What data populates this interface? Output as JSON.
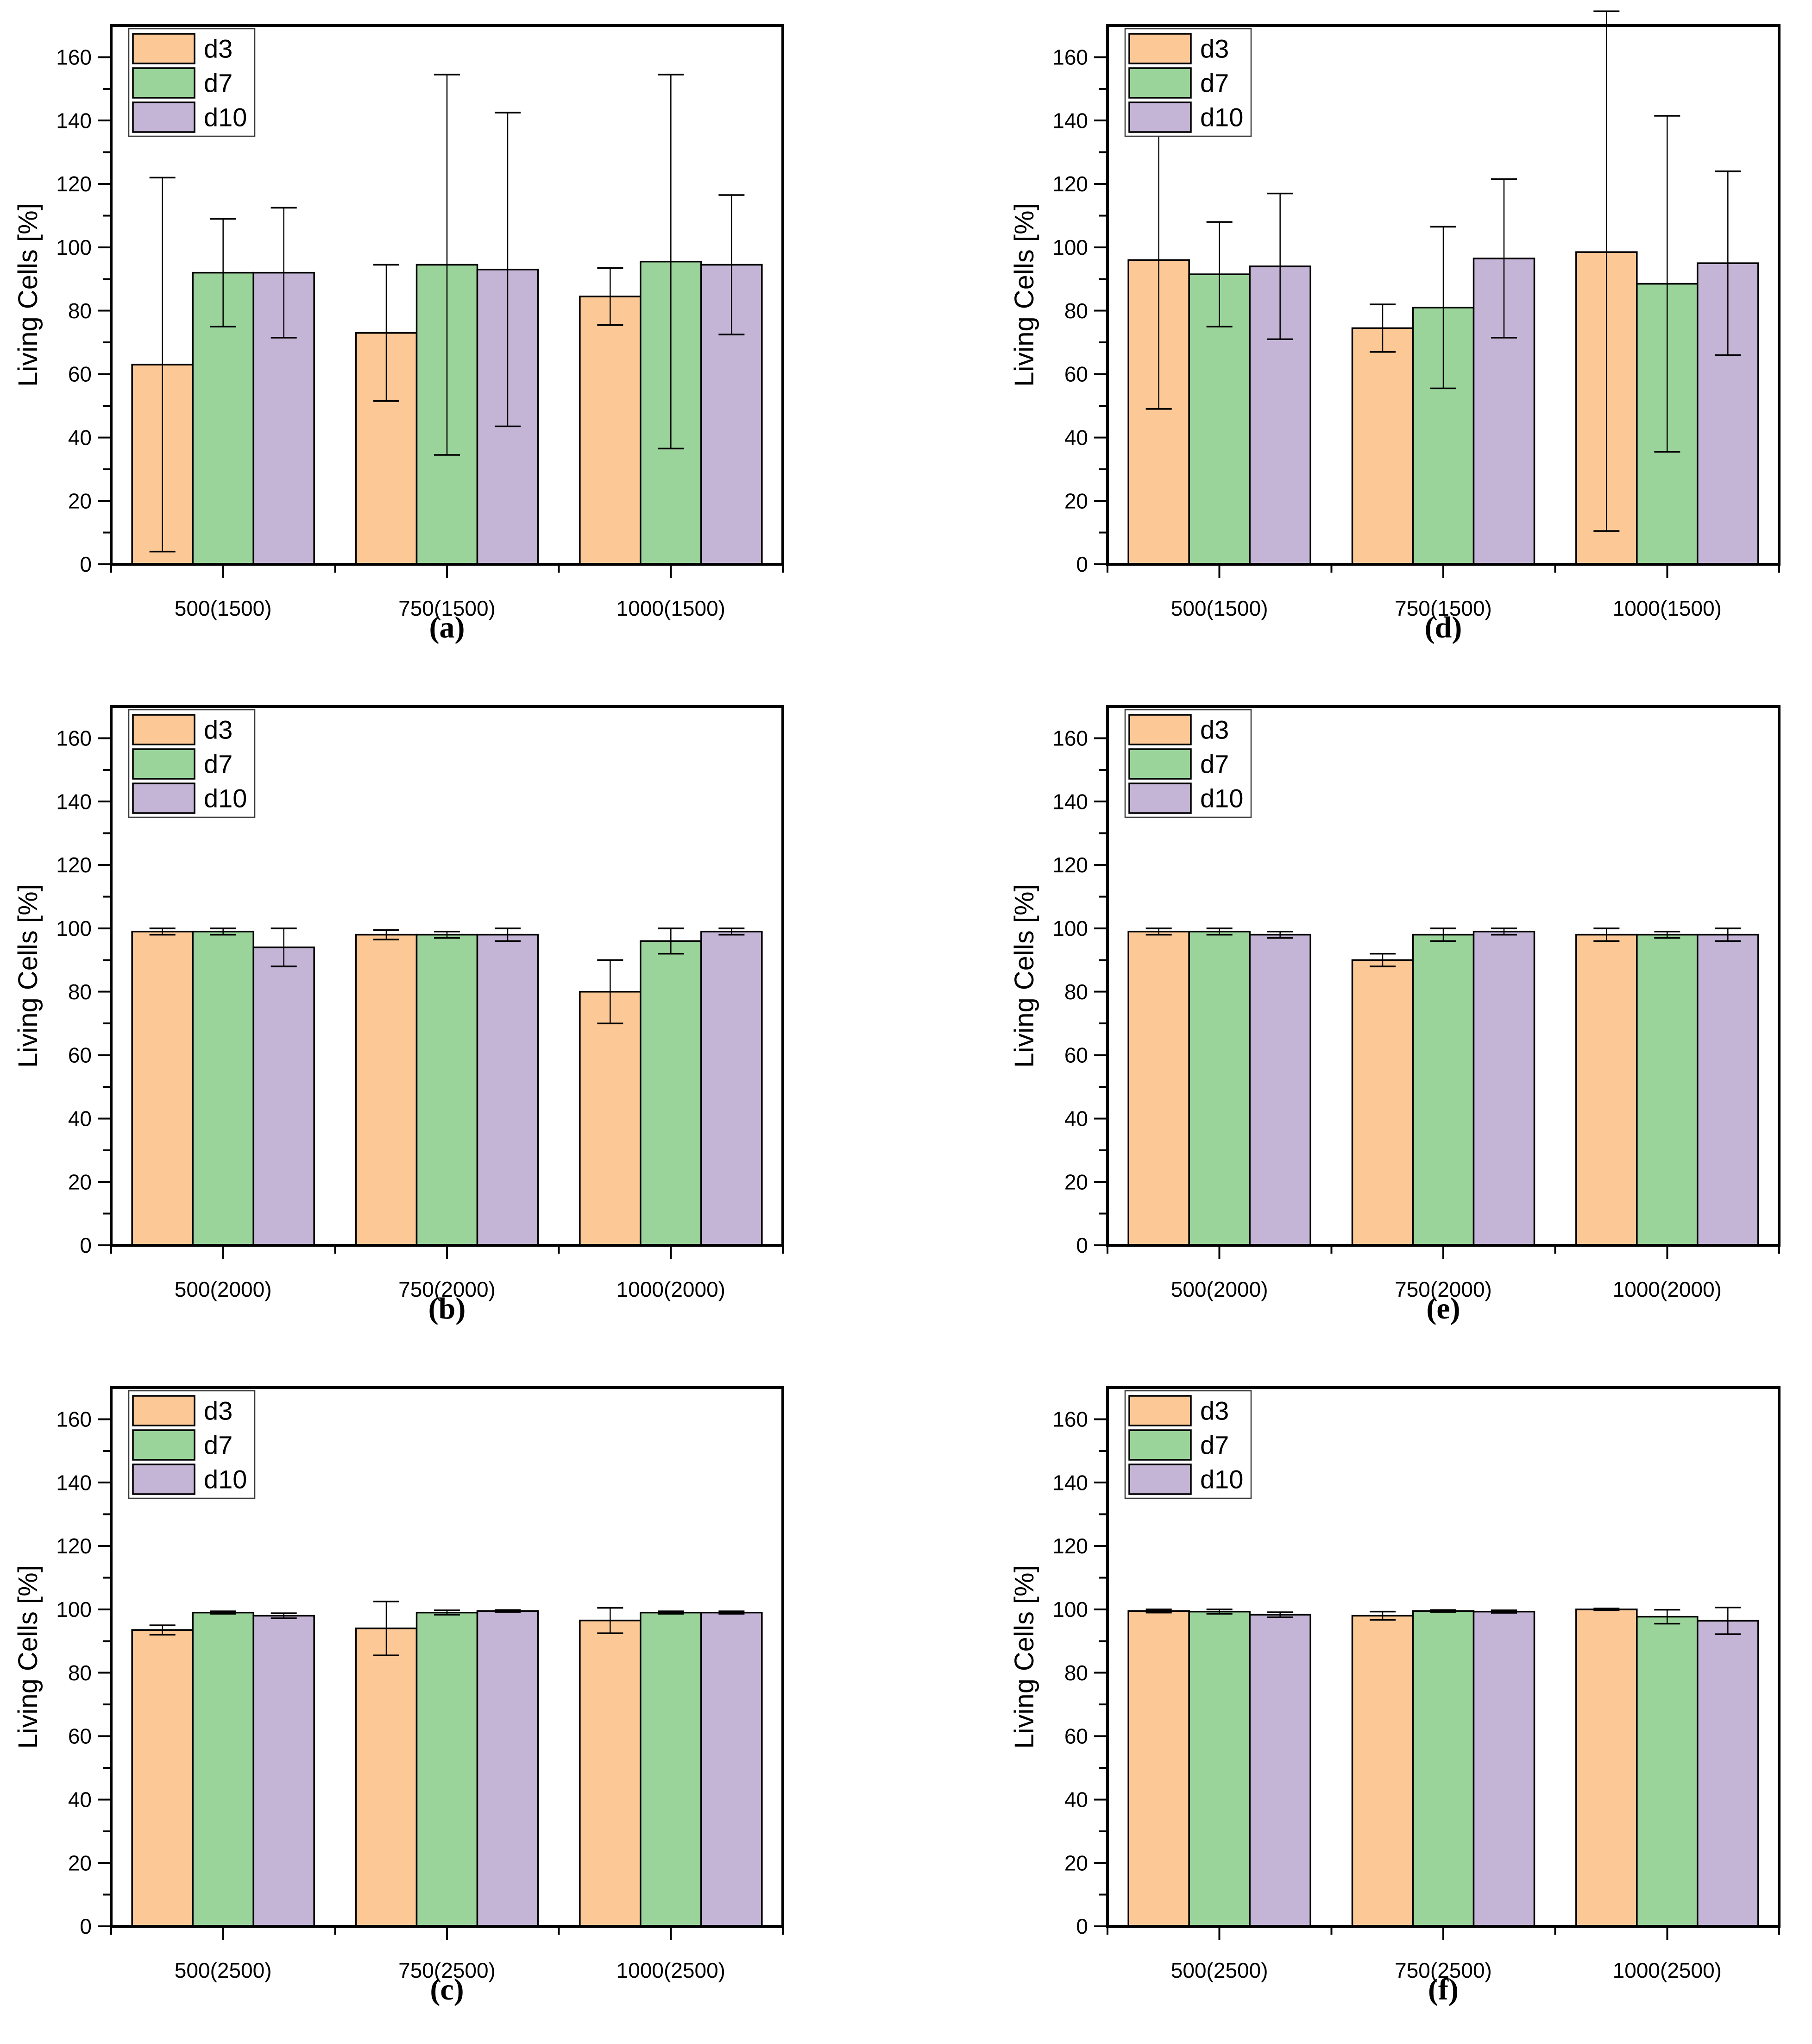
{
  "figure": {
    "background": "#ffffff",
    "axis_color": "#000000",
    "bar_border_color": "#000000",
    "error_bar_color": "#000000",
    "legend_border_color": "#333333",
    "series": [
      {
        "key": "d3",
        "label": "d3",
        "color": "#FCC896"
      },
      {
        "key": "d7",
        "label": "d7",
        "color": "#9AD49A"
      },
      {
        "key": "d10",
        "label": "d10",
        "color": "#C4B4D6"
      }
    ]
  },
  "chart_data": [
    {
      "id": "a",
      "caption": "(a)",
      "type": "bar",
      "title": "",
      "xlabel": "",
      "ylabel": "Living Cells [%]",
      "ylim": [
        0,
        170
      ],
      "ytick_step": 20,
      "yminor_step": 10,
      "grid": false,
      "legend_position": "top-left",
      "legend": [
        "d3",
        "d7",
        "d10"
      ],
      "categories": [
        "500(1500)",
        "750(1500)",
        "1000(1500)"
      ],
      "series": [
        {
          "name": "d3",
          "values": [
            63,
            73,
            84.5
          ],
          "errors": [
            59,
            21.5,
            9
          ]
        },
        {
          "name": "d7",
          "values": [
            92,
            94.5,
            95.5
          ],
          "errors": [
            17,
            60,
            59
          ]
        },
        {
          "name": "d10",
          "values": [
            92,
            93,
            94.5
          ],
          "errors": [
            20.5,
            49.5,
            22
          ]
        }
      ]
    },
    {
      "id": "b",
      "caption": "(b)",
      "type": "bar",
      "title": "",
      "xlabel": "",
      "ylabel": "Living Cells [%]",
      "ylim": [
        0,
        170
      ],
      "ytick_step": 20,
      "yminor_step": 10,
      "grid": false,
      "legend_position": "top-left",
      "legend": [
        "d3",
        "d7",
        "d10"
      ],
      "categories": [
        "500(2000)",
        "750(2000)",
        "1000(2000)"
      ],
      "series": [
        {
          "name": "d3",
          "values": [
            99,
            98,
            80
          ],
          "errors": [
            1,
            1.5,
            10
          ]
        },
        {
          "name": "d7",
          "values": [
            99,
            98,
            96
          ],
          "errors": [
            1,
            1,
            4
          ]
        },
        {
          "name": "d10",
          "values": [
            94,
            98,
            99
          ],
          "errors": [
            6,
            2,
            1
          ]
        }
      ]
    },
    {
      "id": "c",
      "caption": "(c)",
      "type": "bar",
      "title": "",
      "xlabel": "",
      "ylabel": "Living Cells [%]",
      "ylim": [
        0,
        170
      ],
      "ytick_step": 20,
      "yminor_step": 10,
      "grid": false,
      "legend_position": "top-left",
      "legend": [
        "d3",
        "d7",
        "d10"
      ],
      "categories": [
        "500(2500)",
        "750(2500)",
        "1000(2500)"
      ],
      "series": [
        {
          "name": "d3",
          "values": [
            93.5,
            94,
            96.5
          ],
          "errors": [
            1.5,
            8.5,
            4
          ]
        },
        {
          "name": "d7",
          "values": [
            99,
            99,
            99
          ],
          "errors": [
            0.4,
            0.7,
            0.4
          ]
        },
        {
          "name": "d10",
          "values": [
            98,
            99.5,
            99
          ],
          "errors": [
            0.8,
            0.3,
            0.4
          ]
        }
      ]
    },
    {
      "id": "d",
      "caption": "(d)",
      "type": "bar",
      "title": "",
      "xlabel": "",
      "ylabel": "Living Cells [%]",
      "ylim": [
        0,
        170
      ],
      "ytick_step": 20,
      "yminor_step": 10,
      "grid": false,
      "legend_position": "top-left",
      "legend": [
        "d3",
        "d7",
        "d10"
      ],
      "categories": [
        "500(1500)",
        "750(1500)",
        "1000(1500)"
      ],
      "series": [
        {
          "name": "d3",
          "values": [
            96,
            74.5,
            98.5
          ],
          "errors": [
            47,
            7.5,
            [
              88,
              76
            ]
          ]
        },
        {
          "name": "d7",
          "values": [
            91.5,
            81,
            88.5
          ],
          "errors": [
            16.5,
            25.5,
            53
          ]
        },
        {
          "name": "d10",
          "values": [
            94,
            96.5,
            95
          ],
          "errors": [
            23,
            25,
            29
          ]
        }
      ]
    },
    {
      "id": "e",
      "caption": "(e)",
      "type": "bar",
      "title": "",
      "xlabel": "",
      "ylabel": "Living Cells [%]",
      "ylim": [
        0,
        170
      ],
      "ytick_step": 20,
      "yminor_step": 10,
      "grid": false,
      "legend_position": "top-left",
      "legend": [
        "d3",
        "d7",
        "d10"
      ],
      "categories": [
        "500(2000)",
        "750(2000)",
        "1000(2000)"
      ],
      "series": [
        {
          "name": "d3",
          "values": [
            99,
            90,
            98
          ],
          "errors": [
            1,
            2,
            2
          ]
        },
        {
          "name": "d7",
          "values": [
            99,
            98,
            98
          ],
          "errors": [
            1,
            2,
            1
          ]
        },
        {
          "name": "d10",
          "values": [
            98,
            99,
            98
          ],
          "errors": [
            1,
            1,
            2
          ]
        }
      ]
    },
    {
      "id": "f",
      "caption": "(f)",
      "type": "bar",
      "title": "",
      "xlabel": "",
      "ylabel": "Living Cells [%]",
      "ylim": [
        0,
        170
      ],
      "ytick_step": 20,
      "yminor_step": 10,
      "grid": false,
      "legend_position": "top-left",
      "legend": [
        "d3",
        "d7",
        "d10"
      ],
      "categories": [
        "500(2500)",
        "750(2500)",
        "1000(2500)"
      ],
      "series": [
        {
          "name": "d3",
          "values": [
            99.5,
            98,
            100
          ],
          "errors": [
            0.5,
            1.3,
            0.3
          ]
        },
        {
          "name": "d7",
          "values": [
            99.3,
            99.5,
            97.7
          ],
          "errors": [
            0.7,
            0.3,
            2.2
          ]
        },
        {
          "name": "d10",
          "values": [
            98.3,
            99.3,
            96.4
          ],
          "errors": [
            0.8,
            0.4,
            4.2
          ]
        }
      ]
    }
  ]
}
